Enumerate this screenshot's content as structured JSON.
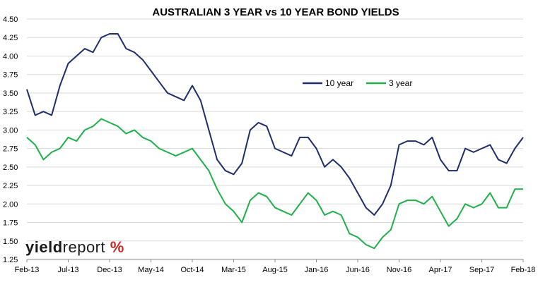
{
  "logo": {
    "brand_bold": "yield",
    "brand_light": "report",
    "symbol": "%",
    "symbol_color": "#c62828"
  },
  "chart_data": {
    "type": "line",
    "title": "AUSTRALIAN 3 YEAR vs 10 YEAR BOND YIELDS",
    "xlabel": "",
    "ylabel": "",
    "ylim": [
      1.25,
      4.5
    ],
    "y_ticks": [
      1.25,
      1.5,
      1.75,
      2.0,
      2.25,
      2.5,
      2.75,
      3.0,
      3.25,
      3.5,
      3.75,
      4.0,
      4.25,
      4.5
    ],
    "y_tick_labels": [
      "1.25",
      "1.50",
      "1.75",
      "2.00",
      "2.25",
      "2.50",
      "2.75",
      "3.00",
      "3.25",
      "3.50",
      "3.75",
      "4.00",
      "4.25",
      "4.50"
    ],
    "x_range": [
      "2013-02",
      "2018-02"
    ],
    "x_ticks": [
      "2013-02",
      "2013-07",
      "2013-12",
      "2014-05",
      "2014-10",
      "2015-03",
      "2015-08",
      "2016-01",
      "2016-06",
      "2016-11",
      "2017-04",
      "2017-09",
      "2018-02"
    ],
    "x_tick_labels": [
      "Feb-13",
      "Jul-13",
      "Dec-13",
      "May-14",
      "Oct-14",
      "Mar-15",
      "Aug-15",
      "Jan-16",
      "Jun-16",
      "Nov-16",
      "Apr-17",
      "Sep-17",
      "Feb-18"
    ],
    "grid": {
      "horizontal": true,
      "vertical": false
    },
    "legend_position": "center-right",
    "series": [
      {
        "name": "10 year",
        "color": "#1f2d6b",
        "x": [
          "2013-02",
          "2013-03",
          "2013-04",
          "2013-05",
          "2013-06",
          "2013-07",
          "2013-08",
          "2013-09",
          "2013-10",
          "2013-11",
          "2013-12",
          "2014-01",
          "2014-02",
          "2014-03",
          "2014-04",
          "2014-05",
          "2014-06",
          "2014-07",
          "2014-08",
          "2014-09",
          "2014-10",
          "2014-11",
          "2014-12",
          "2015-01",
          "2015-02",
          "2015-03",
          "2015-04",
          "2015-05",
          "2015-06",
          "2015-07",
          "2015-08",
          "2015-09",
          "2015-10",
          "2015-11",
          "2015-12",
          "2016-01",
          "2016-02",
          "2016-03",
          "2016-04",
          "2016-05",
          "2016-06",
          "2016-07",
          "2016-08",
          "2016-09",
          "2016-10",
          "2016-11",
          "2016-12",
          "2017-01",
          "2017-02",
          "2017-03",
          "2017-04",
          "2017-05",
          "2017-06",
          "2017-07",
          "2017-08",
          "2017-09",
          "2017-10",
          "2017-11",
          "2017-12",
          "2018-01",
          "2018-02"
        ],
        "values": [
          3.55,
          3.2,
          3.25,
          3.2,
          3.6,
          3.9,
          4.0,
          4.1,
          4.05,
          4.25,
          4.3,
          4.3,
          4.1,
          4.05,
          3.95,
          3.8,
          3.65,
          3.5,
          3.45,
          3.4,
          3.6,
          3.4,
          3.0,
          2.6,
          2.45,
          2.4,
          2.55,
          3.0,
          3.1,
          3.05,
          2.75,
          2.7,
          2.65,
          2.9,
          2.9,
          2.75,
          2.5,
          2.6,
          2.5,
          2.35,
          2.15,
          1.95,
          1.85,
          2.0,
          2.25,
          2.8,
          2.85,
          2.85,
          2.8,
          2.9,
          2.6,
          2.45,
          2.45,
          2.75,
          2.7,
          2.75,
          2.8,
          2.6,
          2.55,
          2.75,
          2.9
        ]
      },
      {
        "name": "3 year",
        "color": "#1fb04a",
        "x": [
          "2013-02",
          "2013-03",
          "2013-04",
          "2013-05",
          "2013-06",
          "2013-07",
          "2013-08",
          "2013-09",
          "2013-10",
          "2013-11",
          "2013-12",
          "2014-01",
          "2014-02",
          "2014-03",
          "2014-04",
          "2014-05",
          "2014-06",
          "2014-07",
          "2014-08",
          "2014-09",
          "2014-10",
          "2014-11",
          "2014-12",
          "2015-01",
          "2015-02",
          "2015-03",
          "2015-04",
          "2015-05",
          "2015-06",
          "2015-07",
          "2015-08",
          "2015-09",
          "2015-10",
          "2015-11",
          "2015-12",
          "2016-01",
          "2016-02",
          "2016-03",
          "2016-04",
          "2016-05",
          "2016-06",
          "2016-07",
          "2016-08",
          "2016-09",
          "2016-10",
          "2016-11",
          "2016-12",
          "2017-01",
          "2017-02",
          "2017-03",
          "2017-04",
          "2017-05",
          "2017-06",
          "2017-07",
          "2017-08",
          "2017-09",
          "2017-10",
          "2017-11",
          "2017-12",
          "2018-01",
          "2018-02"
        ],
        "values": [
          2.9,
          2.8,
          2.6,
          2.7,
          2.75,
          2.9,
          2.85,
          3.0,
          3.05,
          3.15,
          3.1,
          3.05,
          2.95,
          3.0,
          2.9,
          2.85,
          2.75,
          2.7,
          2.65,
          2.7,
          2.75,
          2.6,
          2.45,
          2.2,
          2.0,
          1.9,
          1.75,
          2.05,
          2.15,
          2.1,
          1.95,
          1.9,
          1.85,
          2.0,
          2.15,
          2.05,
          1.85,
          1.9,
          1.85,
          1.6,
          1.55,
          1.45,
          1.4,
          1.55,
          1.65,
          2.0,
          2.05,
          2.05,
          2.0,
          2.1,
          1.9,
          1.7,
          1.8,
          2.0,
          1.95,
          2.0,
          2.15,
          1.95,
          1.95,
          2.2,
          2.2
        ]
      }
    ]
  }
}
